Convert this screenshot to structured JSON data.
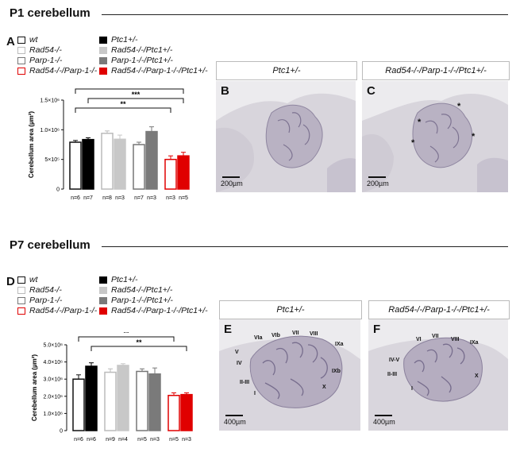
{
  "section1": {
    "title": "P1 cerebellum"
  },
  "section2": {
    "title": "P7 cerebellum"
  },
  "panelA": {
    "letter": "A",
    "legend": [
      {
        "label": "wt",
        "fill": "#ffffff",
        "stroke": "#111111"
      },
      {
        "label": "Ptc1+/-",
        "fill": "#000000",
        "stroke": "#000000"
      },
      {
        "label": "Rad54-/-",
        "fill": "#ffffff",
        "stroke": "#bbbbbb"
      },
      {
        "label": "Rad54-/-/Ptc1+/-",
        "fill": "#c8c8c8",
        "stroke": "#c8c8c8"
      },
      {
        "label": "Parp-1-/-",
        "fill": "#ffffff",
        "stroke": "#777777"
      },
      {
        "label": "Parp-1-/-/Ptc1+/-",
        "fill": "#7a7a7a",
        "stroke": "#7a7a7a"
      },
      {
        "label": "Rad54-/-/Parp-1-/-",
        "fill": "#ffffff",
        "stroke": "#e00000"
      },
      {
        "label": "Rad54-/-/Parp-1-/-/Ptc1+/-",
        "fill": "#e00000",
        "stroke": "#e00000"
      }
    ]
  },
  "panelD": {
    "letter": "D",
    "legend": [
      {
        "label": "wt",
        "fill": "#ffffff",
        "stroke": "#111111"
      },
      {
        "label": "Ptc1+/-",
        "fill": "#000000",
        "stroke": "#000000"
      },
      {
        "label": "Rad54-/-",
        "fill": "#ffffff",
        "stroke": "#bbbbbb"
      },
      {
        "label": "Rad54-/-/Ptc1+/-",
        "fill": "#c8c8c8",
        "stroke": "#c8c8c8"
      },
      {
        "label": "Parp-1-/-",
        "fill": "#ffffff",
        "stroke": "#777777"
      },
      {
        "label": "Parp-1-/-/Ptc1+/-",
        "fill": "#7a7a7a",
        "stroke": "#7a7a7a"
      },
      {
        "label": "Rad54-/-/Parp-1-/-",
        "fill": "#ffffff",
        "stroke": "#e00000"
      },
      {
        "label": "Rad54-/-/Parp-1-/-/Ptc1+/-",
        "fill": "#e00000",
        "stroke": "#e00000"
      }
    ]
  },
  "panelB": {
    "letter": "B",
    "title": "Ptc1+/-",
    "scalebar": "200µm"
  },
  "panelC": {
    "letter": "C",
    "title": "Rad54-/-/Parp-1-/-/Ptc1+/-",
    "scalebar": "200µm",
    "marker": "*"
  },
  "panelE": {
    "letter": "E",
    "title": "Ptc1+/-",
    "scalebar": "400µm",
    "lobules": [
      "VIa",
      "VIb",
      "VII",
      "VIII",
      "IXa",
      "V",
      "IV",
      "IXb",
      "II-III",
      "X",
      "I"
    ]
  },
  "panelF": {
    "letter": "F",
    "title": "Rad54-/-/Parp-1-/-/Ptc1+/-",
    "scalebar": "400µm",
    "lobules": [
      "VI",
      "VII",
      "VIII",
      "IXa",
      "IV-V",
      "II-III",
      "X",
      "I"
    ]
  },
  "chart_data": [
    {
      "type": "bar",
      "panel": "A",
      "ylabel": "Cerebellum area (µm²)",
      "ylim": [
        0,
        1500000
      ],
      "yticks": [
        "0",
        "5×10⁵",
        "1.0×10⁶",
        "1.5×10⁶"
      ],
      "categories": [
        "wt",
        "Ptc1+/-",
        "Rad54-/-",
        "Rad54-/-/Ptc1+/-",
        "Parp-1-/-",
        "Parp-1-/-/Ptc1+/-",
        "Rad54-/-/Parp-1-/-",
        "Rad54-/-/Parp-1-/-/Ptc1+/-"
      ],
      "values": [
        790000,
        835000,
        940000,
        840000,
        750000,
        970000,
        500000,
        560000
      ],
      "errors": [
        30000,
        30000,
        40000,
        70000,
        40000,
        80000,
        60000,
        60000
      ],
      "n_labels": [
        "n=6",
        "n=7",
        "n=8",
        "n=3",
        "n=7",
        "n=3",
        "n=3",
        "n=5"
      ],
      "significance": [
        {
          "from": "wt",
          "to": "Rad54-/-/Parp-1-/-/Ptc1+/-",
          "label": "**"
        },
        {
          "from": "Ptc1+/-",
          "to": "Rad54-/-/Parp-1-/-/Ptc1+/-",
          "label": "***"
        },
        {
          "from": "wt",
          "to": "Rad54-/-/Parp-1-/-",
          "label": "**"
        }
      ]
    },
    {
      "type": "bar",
      "panel": "D",
      "ylabel": "Cerebellum area (µm²)",
      "ylim": [
        0,
        5000000
      ],
      "yticks": [
        "0",
        "1.0×10⁶",
        "2.0×10⁶",
        "3.0×10⁶",
        "4.0×10⁶",
        "5.0×10⁶"
      ],
      "categories": [
        "wt",
        "Ptc1+/-",
        "Rad54-/-",
        "Rad54-/-/Ptc1+/-",
        "Parp-1-/-",
        "Parp-1-/-/Ptc1+/-",
        "Rad54-/-/Parp-1-/-",
        "Rad54-/-/Parp-1-/-/Ptc1+/-"
      ],
      "values": [
        3000000,
        3750000,
        3400000,
        3800000,
        3450000,
        3300000,
        2050000,
        2100000
      ],
      "errors": [
        250000,
        200000,
        200000,
        100000,
        150000,
        350000,
        150000,
        100000
      ],
      "n_labels": [
        "n=6",
        "n=6",
        "n=9",
        "n=4",
        "n=5",
        "n=3",
        "n=5",
        "n=3"
      ],
      "significance": [
        {
          "from": "wt",
          "to": "Rad54-/-/Parp-1-/-",
          "label": "**"
        },
        {
          "from": "Ptc1+/-",
          "to": "Rad54-/-/Parp-1-/-/Ptc1+/-",
          "label": "**"
        }
      ]
    }
  ]
}
